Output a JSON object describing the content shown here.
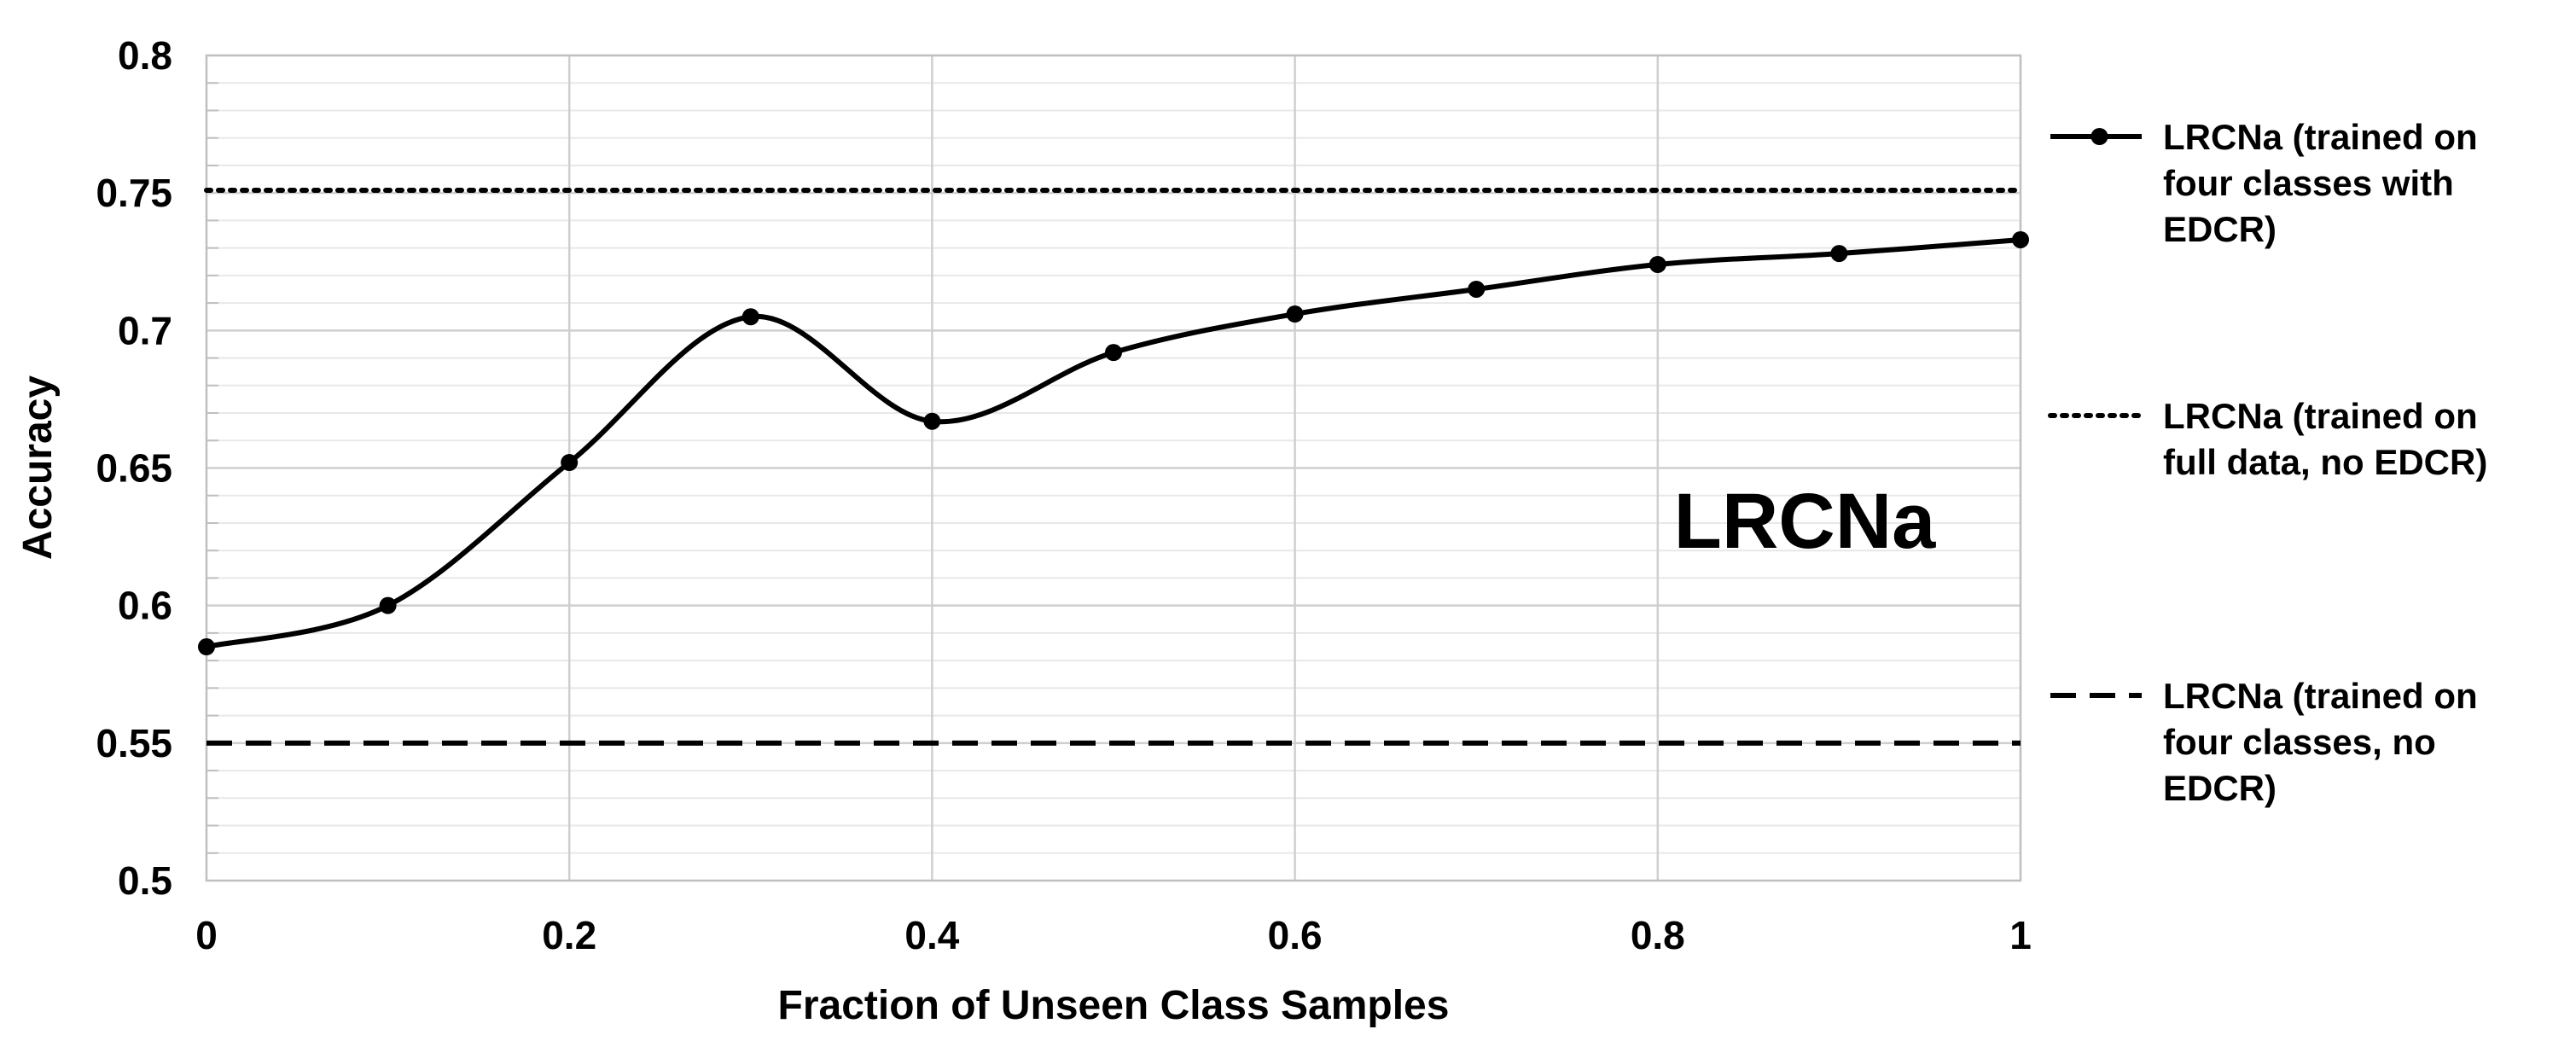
{
  "chart_data": {
    "type": "line",
    "title": "",
    "xlabel": "Fraction of Unseen Class Samples",
    "ylabel": "Accuracy",
    "xlim": [
      0,
      1
    ],
    "ylim": [
      0.5,
      0.8
    ],
    "x_ticks": [
      "0",
      "0.2",
      "0.4",
      "0.6",
      "0.8",
      "1"
    ],
    "y_ticks": [
      "0.5",
      "0.55",
      "0.6",
      "0.65",
      "0.7",
      "0.75",
      "0.8"
    ],
    "grid": true,
    "legend_position": "right",
    "annotation": "LRCNa",
    "series": [
      {
        "name": "LRCNa (trained on four classes with EDCR)",
        "legend_lines": [
          "LRCNa (trained on",
          "four classes with",
          "EDCR)"
        ],
        "style": "solid-markers",
        "x": [
          0,
          0.1,
          0.2,
          0.3,
          0.4,
          0.5,
          0.6,
          0.7,
          0.8,
          0.9,
          1.0
        ],
        "y": [
          0.585,
          0.6,
          0.652,
          0.705,
          0.667,
          0.692,
          0.706,
          0.715,
          0.724,
          0.728,
          0.733
        ]
      },
      {
        "name": "LRCNa (trained on full data, no EDCR)",
        "legend_lines": [
          "LRCNa (trained on",
          "full data, no EDCR)"
        ],
        "style": "dotted",
        "x": [
          0,
          1
        ],
        "y": [
          0.751,
          0.751
        ]
      },
      {
        "name": "LRCNa (trained on four classes, no EDCR)",
        "legend_lines": [
          "LRCNa (trained on",
          "four classes, no",
          "EDCR)"
        ],
        "style": "dashed",
        "x": [
          0,
          1
        ],
        "y": [
          0.55,
          0.55
        ]
      }
    ]
  }
}
